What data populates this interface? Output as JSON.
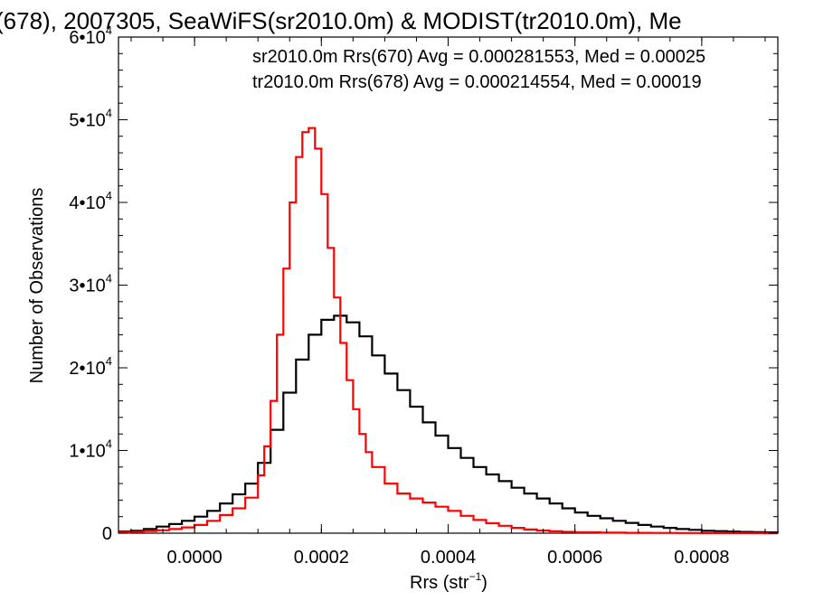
{
  "chart_data": {
    "type": "line",
    "step": true,
    "title": "(678), 2007305, SeaWiFS(sr2010.0m) & MODIST(tr2010.0m), Me",
    "xlabel": "Rrs (str",
    "xlabel_sup": "−1",
    "xlabel_close": ")",
    "ylabel": "Number of Observations",
    "xlim": [
      -0.00012,
      0.00092
    ],
    "ylim": [
      0,
      60000
    ],
    "x_ticks": [
      0.0,
      0.0002,
      0.0004,
      0.0006,
      0.0008
    ],
    "x_tick_labels": [
      "0.0000",
      "0.0002",
      "0.0004",
      "0.0006",
      "0.0008"
    ],
    "y_ticks": [
      0,
      10000,
      20000,
      30000,
      40000,
      50000,
      60000
    ],
    "y_tick_labels": [
      {
        "base": "0",
        "sup": ""
      },
      {
        "base": "1•10",
        "sup": "4"
      },
      {
        "base": "2•10",
        "sup": "4"
      },
      {
        "base": "3•10",
        "sup": "4"
      },
      {
        "base": "4•10",
        "sup": "4"
      },
      {
        "base": "5•10",
        "sup": "4"
      },
      {
        "base": "6•10",
        "sup": "4"
      }
    ],
    "legend_placement": "top",
    "series": [
      {
        "name": "sr2010.0m Rrs(670) Avg = 0.000281553, Med = 0.00025",
        "color": "#000000",
        "x": [
          -0.00012,
          -0.0001,
          -8e-05,
          -6e-05,
          -4e-05,
          -2e-05,
          0.0,
          2e-05,
          4e-05,
          6e-05,
          8e-05,
          0.0001,
          0.00012,
          0.00014,
          0.00016,
          0.00018,
          0.0002,
          0.00022,
          0.00024,
          0.00026,
          0.00028,
          0.0003,
          0.00032,
          0.00034,
          0.00036,
          0.00038,
          0.0004,
          0.00042,
          0.00044,
          0.00046,
          0.00048,
          0.0005,
          0.00052,
          0.00054,
          0.00056,
          0.00058,
          0.0006,
          0.00062,
          0.00064,
          0.00066,
          0.00068,
          0.0007,
          0.00072,
          0.00074,
          0.00076,
          0.00078,
          0.0008,
          0.00082,
          0.00084,
          0.00086,
          0.00088,
          0.0009,
          0.00092
        ],
        "values": [
          200,
          300,
          500,
          800,
          1100,
          1500,
          2000,
          2700,
          3600,
          4700,
          6000,
          8500,
          12500,
          17000,
          21000,
          24000,
          25800,
          26300,
          25500,
          23800,
          21500,
          19300,
          17300,
          15300,
          13400,
          11800,
          10300,
          9100,
          8000,
          7100,
          6300,
          5500,
          4800,
          4200,
          3600,
          3000,
          2500,
          2100,
          1800,
          1500,
          1250,
          1000,
          800,
          650,
          500,
          400,
          300,
          250,
          200,
          150,
          120,
          100,
          80
        ]
      },
      {
        "name": "tr2010.0m Rrs(678) Avg = 0.000214554, Med = 0.00019",
        "color": "#ff0000",
        "x": [
          -0.00012,
          -0.0001,
          -8e-05,
          -6e-05,
          -4e-05,
          -2e-05,
          0.0,
          2e-05,
          4e-05,
          6e-05,
          8e-05,
          0.0001,
          0.00011,
          0.00012,
          0.00013,
          0.00014,
          0.00015,
          0.00016,
          0.00017,
          0.00018,
          0.00019,
          0.0002,
          0.00021,
          0.00022,
          0.00023,
          0.00024,
          0.00025,
          0.00026,
          0.00027,
          0.00028,
          0.0003,
          0.00032,
          0.00034,
          0.00036,
          0.00038,
          0.0004,
          0.00042,
          0.00044,
          0.00046,
          0.00048,
          0.0005,
          0.00052,
          0.00054,
          0.00056,
          0.00058,
          0.0006,
          0.00064,
          0.00068,
          0.00072,
          0.00076,
          0.0008,
          0.00085,
          0.0009
        ],
        "values": [
          100,
          150,
          250,
          350,
          500,
          700,
          1000,
          1500,
          2200,
          3000,
          4300,
          7000,
          10500,
          16000,
          24000,
          32000,
          40000,
          45500,
          48500,
          49000,
          46500,
          41000,
          34500,
          28500,
          23000,
          18500,
          15000,
          12000,
          9800,
          8000,
          6000,
          4800,
          4200,
          3700,
          3200,
          2700,
          2100,
          1600,
          1200,
          900,
          650,
          450,
          320,
          230,
          160,
          110,
          70,
          45,
          30,
          20,
          15,
          10,
          5
        ]
      }
    ]
  }
}
